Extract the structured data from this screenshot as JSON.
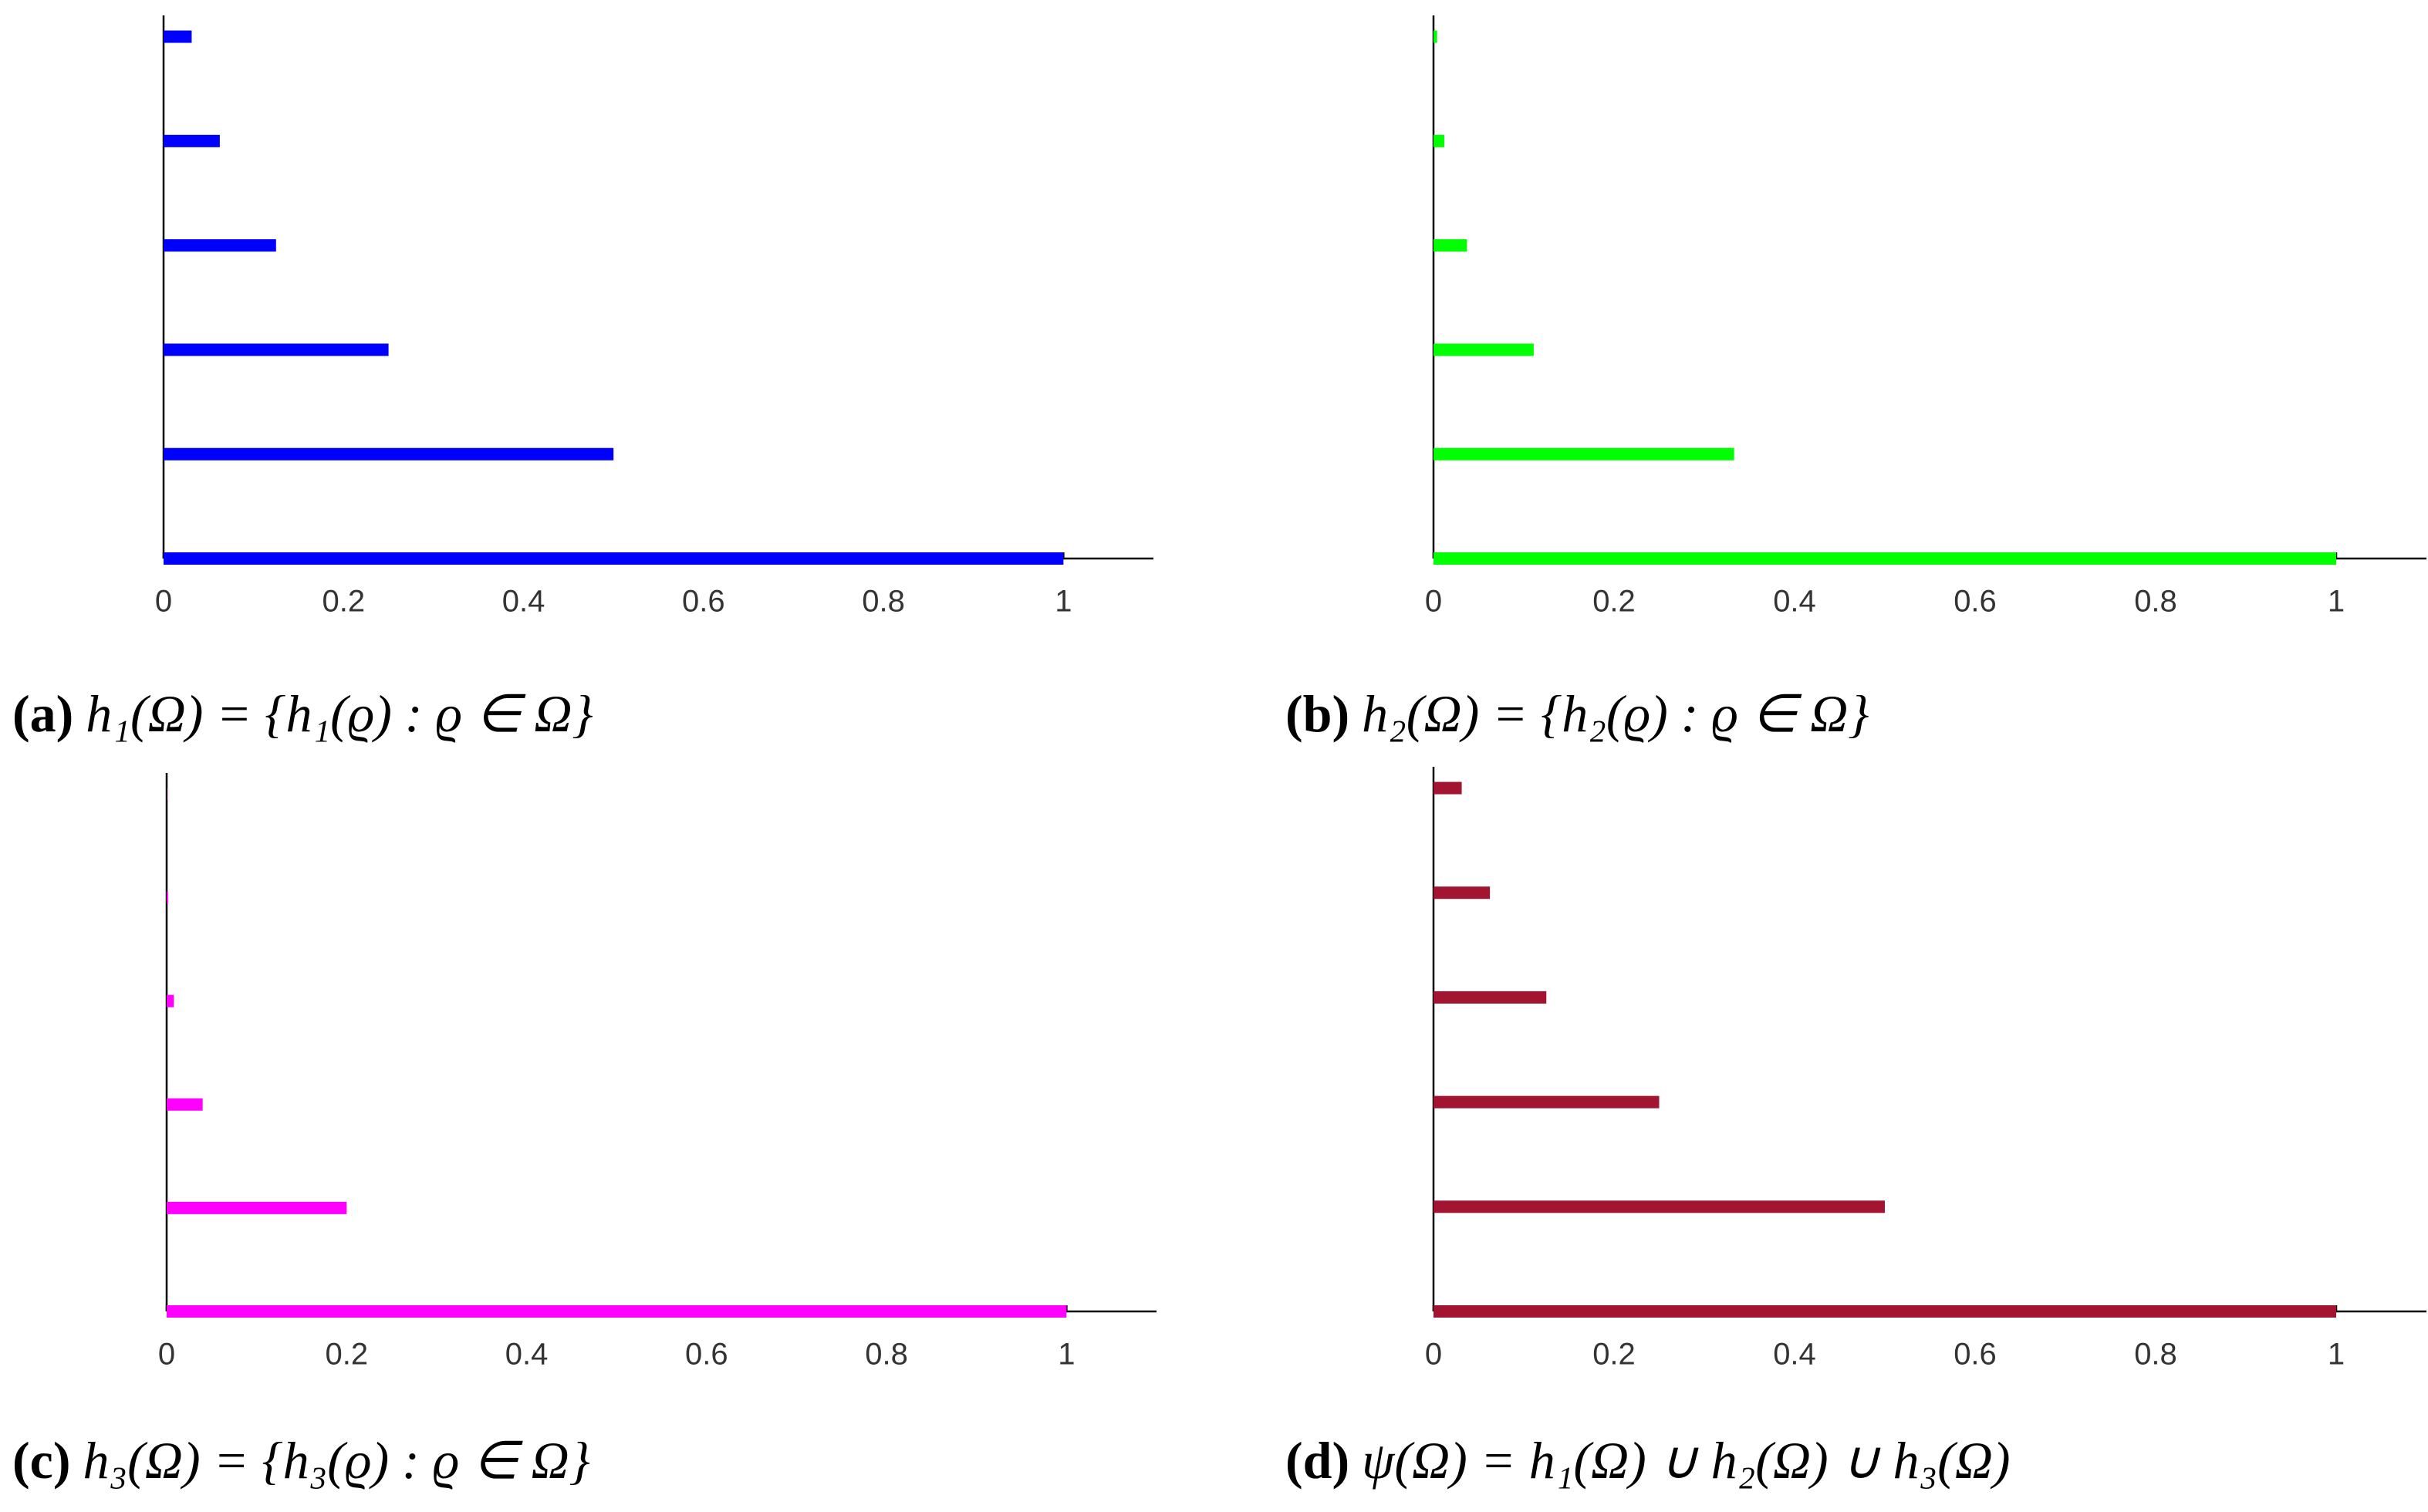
{
  "chart_data": [
    {
      "type": "bar",
      "orientation": "horizontal",
      "caption_label": "(a)",
      "caption": "h₁(Ω) = {h₁(ϱ) : ϱ ∈ Ω}",
      "categories": [
        null,
        null,
        null,
        null,
        null,
        null
      ],
      "values": [
        1,
        0.5,
        0.25,
        0.125,
        0.0625,
        0.03125
      ],
      "color": "#0000ff",
      "xlim": [
        0,
        1.1
      ],
      "xticks": [
        0,
        0.2,
        0.4,
        0.6,
        0.8,
        1
      ],
      "grid": false
    },
    {
      "type": "bar",
      "orientation": "horizontal",
      "caption_label": "(b)",
      "caption": "h₂(Ω) = {h₂(ϱ) : ϱ ∈ Ω}",
      "categories": [
        null,
        null,
        null,
        null,
        null,
        null
      ],
      "values": [
        1,
        0.333,
        0.111,
        0.037,
        0.012,
        0.004
      ],
      "color": "#00ff00",
      "xlim": [
        0,
        1.1
      ],
      "xticks": [
        0,
        0.2,
        0.4,
        0.6,
        0.8,
        1
      ],
      "grid": false
    },
    {
      "type": "bar",
      "orientation": "horizontal",
      "caption_label": "(c)",
      "caption": "h₃(Ω) = {h₃(ϱ) : ϱ ∈ Ω}",
      "categories": [
        null,
        null,
        null,
        null,
        null,
        null
      ],
      "values": [
        1,
        0.2,
        0.04,
        0.008,
        0.0016,
        0.0003
      ],
      "color": "#ff00ff",
      "xlim": [
        0,
        1.1
      ],
      "xticks": [
        0,
        0.2,
        0.4,
        0.6,
        0.8,
        1
      ],
      "grid": false
    },
    {
      "type": "bar",
      "orientation": "horizontal",
      "caption_label": "(d)",
      "caption": "ψ(Ω) = h₁(Ω) ∪ h₂(Ω) ∪ h₃(Ω)",
      "categories": [
        null,
        null,
        null,
        null,
        null,
        null
      ],
      "values": [
        1,
        0.5,
        0.25,
        0.125,
        0.0625,
        0.03125
      ],
      "color": "#a2142f",
      "xlim": [
        0,
        1.1
      ],
      "xticks": [
        0,
        0.2,
        0.4,
        0.6,
        0.8,
        1
      ],
      "grid": false
    }
  ]
}
